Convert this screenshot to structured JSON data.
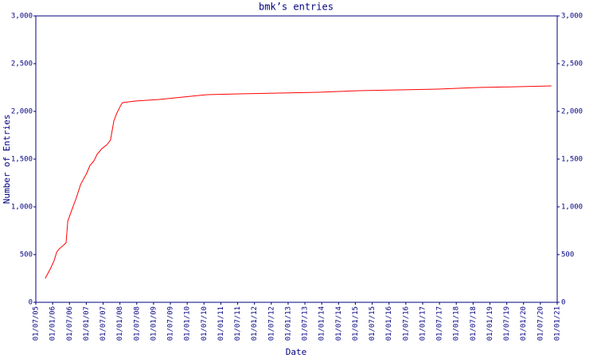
{
  "chart_data": {
    "type": "line",
    "title": "bmk’s entries",
    "x_label": "Date",
    "y_label": "Number of Entries",
    "color": "#ff0000",
    "x": [
      2005.78,
      2005.93,
      2006.04,
      2006.12,
      2006.19,
      2006.33,
      2006.4,
      2006.45,
      2006.56,
      2006.71,
      2006.83,
      2006.92,
      2007.01,
      2007.11,
      2007.23,
      2007.32,
      2007.46,
      2007.61,
      2007.72,
      2007.82,
      2007.91,
      2008.03,
      2008.08,
      2008.46,
      2009.17,
      2010.11,
      2010.59,
      2011.53,
      2012.72,
      2013.9,
      2015.08,
      2016.27,
      2017.45,
      2018.63,
      2019.82,
      2020.83
    ],
    "values": [
      250,
      350,
      433,
      525,
      558,
      600,
      625,
      850,
      958,
      1100,
      1233,
      1292,
      1350,
      1433,
      1483,
      1550,
      1608,
      1650,
      1700,
      1900,
      1983,
      2067,
      2092,
      2108,
      2125,
      2158,
      2175,
      2183,
      2192,
      2200,
      2217,
      2225,
      2233,
      2250,
      2258,
      2267
    ],
    "xlim": [
      2005.5,
      2021.0
    ],
    "xticks": [
      {
        "value": 2005.5,
        "label": "01/07/05"
      },
      {
        "value": 2006.0,
        "label": "01/01/06"
      },
      {
        "value": 2006.5,
        "label": "01/07/06"
      },
      {
        "value": 2007.0,
        "label": "01/01/07"
      },
      {
        "value": 2007.5,
        "label": "01/07/07"
      },
      {
        "value": 2008.0,
        "label": "01/01/08"
      },
      {
        "value": 2008.5,
        "label": "01/07/08"
      },
      {
        "value": 2009.0,
        "label": "01/01/09"
      },
      {
        "value": 2009.5,
        "label": "01/07/09"
      },
      {
        "value": 2010.0,
        "label": "01/01/10"
      },
      {
        "value": 2010.5,
        "label": "01/07/10"
      },
      {
        "value": 2011.0,
        "label": "01/01/11"
      },
      {
        "value": 2011.5,
        "label": "01/07/11"
      },
      {
        "value": 2012.0,
        "label": "01/01/12"
      },
      {
        "value": 2012.5,
        "label": "01/07/12"
      },
      {
        "value": 2013.0,
        "label": "01/01/13"
      },
      {
        "value": 2013.5,
        "label": "01/07/13"
      },
      {
        "value": 2014.0,
        "label": "01/01/14"
      },
      {
        "value": 2014.5,
        "label": "01/07/14"
      },
      {
        "value": 2015.0,
        "label": "01/01/15"
      },
      {
        "value": 2015.5,
        "label": "01/07/15"
      },
      {
        "value": 2016.0,
        "label": "01/01/16"
      },
      {
        "value": 2016.5,
        "label": "01/07/16"
      },
      {
        "value": 2017.0,
        "label": "01/01/17"
      },
      {
        "value": 2017.5,
        "label": "01/07/17"
      },
      {
        "value": 2018.0,
        "label": "01/01/18"
      },
      {
        "value": 2018.5,
        "label": "01/07/18"
      },
      {
        "value": 2019.0,
        "label": "01/01/19"
      },
      {
        "value": 2019.5,
        "label": "01/07/19"
      },
      {
        "value": 2020.0,
        "label": "01/01/20"
      },
      {
        "value": 2020.5,
        "label": "01/07/20"
      },
      {
        "value": 2021.0,
        "label": "01/01/21"
      }
    ],
    "ylim": [
      0,
      3000
    ],
    "yticks": [
      0,
      500,
      {
        "value": 1000,
        "label": "1,000"
      },
      {
        "value": 1500,
        "label": "1,500"
      },
      {
        "value": 2000,
        "label": "2,000"
      },
      {
        "value": 2500,
        "label": "2,500"
      },
      {
        "value": 3000,
        "label": "3,000"
      }
    ],
    "grid": false
  }
}
